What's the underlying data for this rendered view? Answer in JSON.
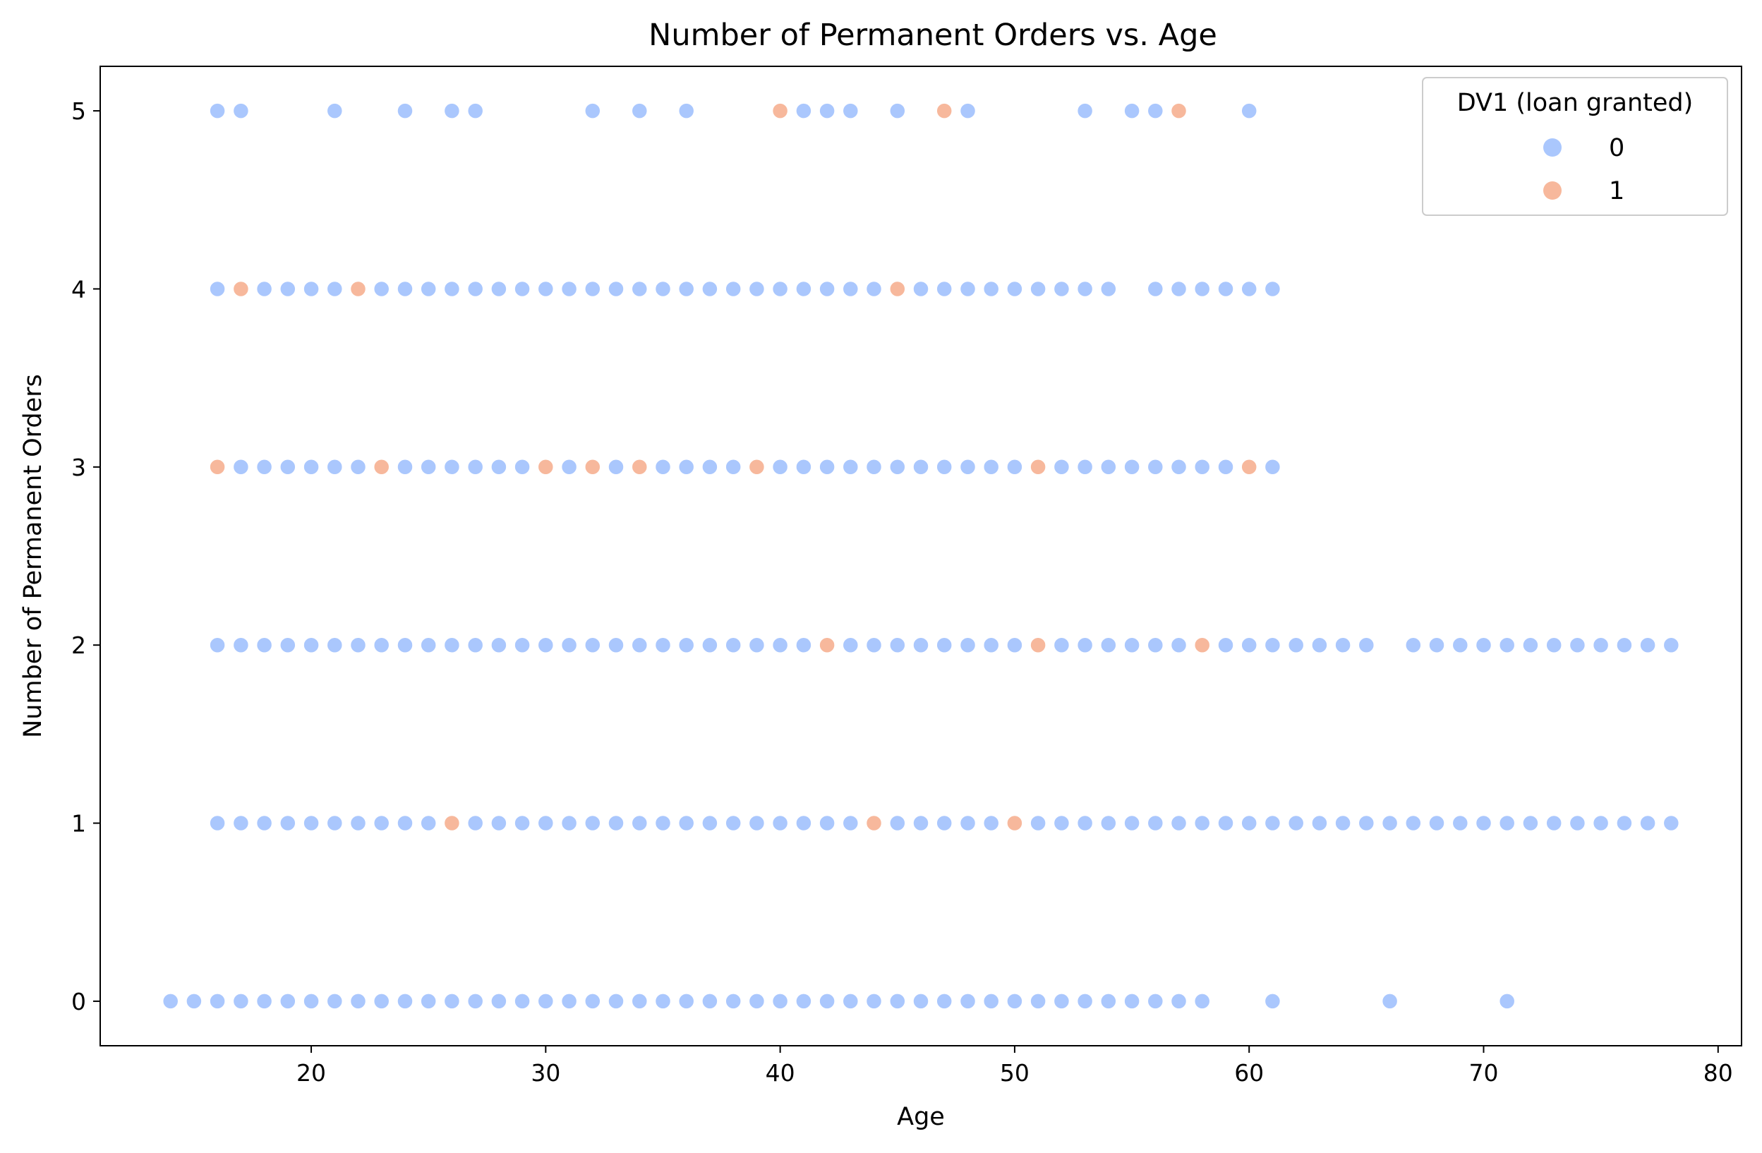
{
  "chart_data": {
    "type": "scatter",
    "title": "Number of Permanent Orders vs. Age",
    "xlabel": "Age",
    "ylabel": "Number of Permanent Orders",
    "xlim": [
      11,
      81
    ],
    "ylim": [
      -0.25,
      5.25
    ],
    "xticks": [
      20,
      30,
      40,
      50,
      60,
      70,
      80
    ],
    "yticks": [
      0,
      1,
      2,
      3,
      4,
      5
    ],
    "grid": false,
    "legend": {
      "title": "DV1 (loan granted)",
      "placement": "top-right",
      "entries": [
        {
          "label": "0",
          "color": "#aac7fd"
        },
        {
          "label": "1",
          "color": "#f7b89c"
        }
      ]
    },
    "series": [
      {
        "name": "0",
        "color": "#aac7fd",
        "points": [
          [
            14,
            0
          ],
          [
            15,
            0
          ],
          [
            16,
            0
          ],
          [
            17,
            0
          ],
          [
            18,
            0
          ],
          [
            19,
            0
          ],
          [
            20,
            0
          ],
          [
            21,
            0
          ],
          [
            22,
            0
          ],
          [
            23,
            0
          ],
          [
            24,
            0
          ],
          [
            25,
            0
          ],
          [
            26,
            0
          ],
          [
            27,
            0
          ],
          [
            28,
            0
          ],
          [
            29,
            0
          ],
          [
            30,
            0
          ],
          [
            31,
            0
          ],
          [
            32,
            0
          ],
          [
            33,
            0
          ],
          [
            34,
            0
          ],
          [
            35,
            0
          ],
          [
            36,
            0
          ],
          [
            37,
            0
          ],
          [
            38,
            0
          ],
          [
            39,
            0
          ],
          [
            40,
            0
          ],
          [
            41,
            0
          ],
          [
            42,
            0
          ],
          [
            43,
            0
          ],
          [
            44,
            0
          ],
          [
            45,
            0
          ],
          [
            46,
            0
          ],
          [
            47,
            0
          ],
          [
            48,
            0
          ],
          [
            49,
            0
          ],
          [
            50,
            0
          ],
          [
            51,
            0
          ],
          [
            52,
            0
          ],
          [
            53,
            0
          ],
          [
            54,
            0
          ],
          [
            55,
            0
          ],
          [
            56,
            0
          ],
          [
            57,
            0
          ],
          [
            58,
            0
          ],
          [
            61,
            0
          ],
          [
            66,
            0
          ],
          [
            71,
            0
          ],
          [
            16,
            1
          ],
          [
            17,
            1
          ],
          [
            18,
            1
          ],
          [
            19,
            1
          ],
          [
            20,
            1
          ],
          [
            21,
            1
          ],
          [
            22,
            1
          ],
          [
            23,
            1
          ],
          [
            24,
            1
          ],
          [
            25,
            1
          ],
          [
            27,
            1
          ],
          [
            28,
            1
          ],
          [
            29,
            1
          ],
          [
            30,
            1
          ],
          [
            31,
            1
          ],
          [
            32,
            1
          ],
          [
            33,
            1
          ],
          [
            34,
            1
          ],
          [
            35,
            1
          ],
          [
            36,
            1
          ],
          [
            37,
            1
          ],
          [
            38,
            1
          ],
          [
            39,
            1
          ],
          [
            40,
            1
          ],
          [
            41,
            1
          ],
          [
            42,
            1
          ],
          [
            43,
            1
          ],
          [
            45,
            1
          ],
          [
            46,
            1
          ],
          [
            47,
            1
          ],
          [
            48,
            1
          ],
          [
            49,
            1
          ],
          [
            51,
            1
          ],
          [
            52,
            1
          ],
          [
            53,
            1
          ],
          [
            54,
            1
          ],
          [
            55,
            1
          ],
          [
            56,
            1
          ],
          [
            57,
            1
          ],
          [
            58,
            1
          ],
          [
            59,
            1
          ],
          [
            60,
            1
          ],
          [
            61,
            1
          ],
          [
            62,
            1
          ],
          [
            63,
            1
          ],
          [
            64,
            1
          ],
          [
            65,
            1
          ],
          [
            66,
            1
          ],
          [
            67,
            1
          ],
          [
            68,
            1
          ],
          [
            69,
            1
          ],
          [
            70,
            1
          ],
          [
            71,
            1
          ],
          [
            72,
            1
          ],
          [
            73,
            1
          ],
          [
            74,
            1
          ],
          [
            75,
            1
          ],
          [
            76,
            1
          ],
          [
            77,
            1
          ],
          [
            78,
            1
          ],
          [
            16,
            2
          ],
          [
            17,
            2
          ],
          [
            18,
            2
          ],
          [
            19,
            2
          ],
          [
            20,
            2
          ],
          [
            21,
            2
          ],
          [
            22,
            2
          ],
          [
            23,
            2
          ],
          [
            24,
            2
          ],
          [
            25,
            2
          ],
          [
            26,
            2
          ],
          [
            27,
            2
          ],
          [
            28,
            2
          ],
          [
            29,
            2
          ],
          [
            30,
            2
          ],
          [
            31,
            2
          ],
          [
            32,
            2
          ],
          [
            33,
            2
          ],
          [
            34,
            2
          ],
          [
            35,
            2
          ],
          [
            36,
            2
          ],
          [
            37,
            2
          ],
          [
            38,
            2
          ],
          [
            39,
            2
          ],
          [
            40,
            2
          ],
          [
            41,
            2
          ],
          [
            43,
            2
          ],
          [
            44,
            2
          ],
          [
            45,
            2
          ],
          [
            46,
            2
          ],
          [
            47,
            2
          ],
          [
            48,
            2
          ],
          [
            49,
            2
          ],
          [
            50,
            2
          ],
          [
            52,
            2
          ],
          [
            53,
            2
          ],
          [
            54,
            2
          ],
          [
            55,
            2
          ],
          [
            56,
            2
          ],
          [
            57,
            2
          ],
          [
            59,
            2
          ],
          [
            60,
            2
          ],
          [
            61,
            2
          ],
          [
            62,
            2
          ],
          [
            63,
            2
          ],
          [
            64,
            2
          ],
          [
            65,
            2
          ],
          [
            67,
            2
          ],
          [
            68,
            2
          ],
          [
            69,
            2
          ],
          [
            70,
            2
          ],
          [
            71,
            2
          ],
          [
            72,
            2
          ],
          [
            73,
            2
          ],
          [
            74,
            2
          ],
          [
            75,
            2
          ],
          [
            76,
            2
          ],
          [
            77,
            2
          ],
          [
            78,
            2
          ],
          [
            17,
            3
          ],
          [
            18,
            3
          ],
          [
            19,
            3
          ],
          [
            20,
            3
          ],
          [
            21,
            3
          ],
          [
            22,
            3
          ],
          [
            24,
            3
          ],
          [
            25,
            3
          ],
          [
            26,
            3
          ],
          [
            27,
            3
          ],
          [
            28,
            3
          ],
          [
            29,
            3
          ],
          [
            31,
            3
          ],
          [
            33,
            3
          ],
          [
            35,
            3
          ],
          [
            36,
            3
          ],
          [
            37,
            3
          ],
          [
            38,
            3
          ],
          [
            40,
            3
          ],
          [
            41,
            3
          ],
          [
            42,
            3
          ],
          [
            43,
            3
          ],
          [
            44,
            3
          ],
          [
            45,
            3
          ],
          [
            46,
            3
          ],
          [
            47,
            3
          ],
          [
            48,
            3
          ],
          [
            49,
            3
          ],
          [
            50,
            3
          ],
          [
            52,
            3
          ],
          [
            53,
            3
          ],
          [
            54,
            3
          ],
          [
            55,
            3
          ],
          [
            56,
            3
          ],
          [
            57,
            3
          ],
          [
            58,
            3
          ],
          [
            59,
            3
          ],
          [
            61,
            3
          ],
          [
            16,
            4
          ],
          [
            18,
            4
          ],
          [
            19,
            4
          ],
          [
            20,
            4
          ],
          [
            21,
            4
          ],
          [
            23,
            4
          ],
          [
            24,
            4
          ],
          [
            25,
            4
          ],
          [
            26,
            4
          ],
          [
            27,
            4
          ],
          [
            28,
            4
          ],
          [
            29,
            4
          ],
          [
            30,
            4
          ],
          [
            31,
            4
          ],
          [
            32,
            4
          ],
          [
            33,
            4
          ],
          [
            34,
            4
          ],
          [
            35,
            4
          ],
          [
            36,
            4
          ],
          [
            37,
            4
          ],
          [
            38,
            4
          ],
          [
            39,
            4
          ],
          [
            40,
            4
          ],
          [
            41,
            4
          ],
          [
            42,
            4
          ],
          [
            43,
            4
          ],
          [
            44,
            4
          ],
          [
            46,
            4
          ],
          [
            47,
            4
          ],
          [
            48,
            4
          ],
          [
            49,
            4
          ],
          [
            50,
            4
          ],
          [
            51,
            4
          ],
          [
            52,
            4
          ],
          [
            53,
            4
          ],
          [
            54,
            4
          ],
          [
            56,
            4
          ],
          [
            57,
            4
          ],
          [
            58,
            4
          ],
          [
            59,
            4
          ],
          [
            60,
            4
          ],
          [
            61,
            4
          ],
          [
            16,
            5
          ],
          [
            17,
            5
          ],
          [
            21,
            5
          ],
          [
            24,
            5
          ],
          [
            26,
            5
          ],
          [
            27,
            5
          ],
          [
            32,
            5
          ],
          [
            34,
            5
          ],
          [
            36,
            5
          ],
          [
            41,
            5
          ],
          [
            42,
            5
          ],
          [
            43,
            5
          ],
          [
            45,
            5
          ],
          [
            48,
            5
          ],
          [
            53,
            5
          ],
          [
            55,
            5
          ],
          [
            56,
            5
          ],
          [
            60,
            5
          ]
        ]
      },
      {
        "name": "1",
        "color": "#f7b89c",
        "points": [
          [
            26,
            1
          ],
          [
            44,
            1
          ],
          [
            50,
            1
          ],
          [
            42,
            2
          ],
          [
            51,
            2
          ],
          [
            58,
            2
          ],
          [
            16,
            3
          ],
          [
            23,
            3
          ],
          [
            30,
            3
          ],
          [
            32,
            3
          ],
          [
            34,
            3
          ],
          [
            39,
            3
          ],
          [
            51,
            3
          ],
          [
            60,
            3
          ],
          [
            17,
            4
          ],
          [
            22,
            4
          ],
          [
            45,
            4
          ],
          [
            40,
            5
          ],
          [
            47,
            5
          ],
          [
            57,
            5
          ]
        ]
      }
    ]
  }
}
